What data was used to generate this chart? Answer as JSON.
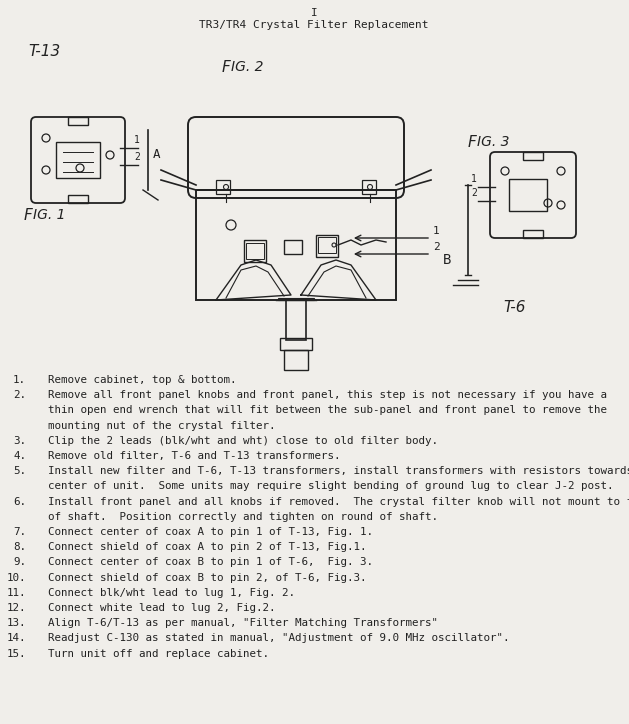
{
  "title_line": "I",
  "title": "TR3/TR4 Crystal Filter Replacement",
  "bg_color": "#f0eeea",
  "text_color": "#222222",
  "fig1_label": "T-13",
  "fig2_caption": "Fig. 2",
  "fig3_caption": "Fig. 3",
  "fig3_label": "T-6",
  "label_A": "A",
  "label_B": "B",
  "instructions": [
    [
      "1.",
      "Remove cabinet, top & bottom."
    ],
    [
      "2.",
      "Remove all front panel knobs and front panel, this step is not necessary if you have a"
    ],
    [
      "",
      "thin open end wrench that will fit between the sub-panel and front panel to remove the"
    ],
    [
      "",
      "mounting nut of the crystal filter."
    ],
    [
      "3.",
      "Clip the 2 leads (blk/wht and wht) close to old filter body."
    ],
    [
      "4.",
      "Remove old filter, T-6 and T-13 transformers."
    ],
    [
      "5.",
      "Install new filter and T-6, T-13 transformers, install transformers with resistors towards"
    ],
    [
      "",
      "center of unit.  Some units may require slight bending of ground lug to clear J-2 post."
    ],
    [
      "6.",
      "Install front panel and all knobs if removed.  The crystal filter knob will not mount to flat"
    ],
    [
      "",
      "of shaft.  Position correctly and tighten on round of shaft."
    ],
    [
      "7.",
      "Connect center of coax A to pin 1 of T-13, Fig. 1."
    ],
    [
      "8.",
      "Connect shield of coax A to pin 2 of T-13, Fig.1."
    ],
    [
      "9.",
      "Connect center of coax B to pin 1 of T-6,  Fig. 3."
    ],
    [
      "10.",
      "Connect shield of coax B to pin 2, of T-6, Fig.3."
    ],
    [
      "11.",
      "Connect blk/wht lead to lug 1, Fig. 2."
    ],
    [
      "12.",
      "Connect white lead to lug 2, Fig.2."
    ],
    [
      "13.",
      "Align T-6/T-13 as per manual, \"Filter Matching Transformers\""
    ],
    [
      "14.",
      "Readjust C-130 as stated in manual, \"Adjustment of 9.0 MHz oscillator\"."
    ],
    [
      "15.",
      "Turn unit off and replace cabinet."
    ]
  ]
}
